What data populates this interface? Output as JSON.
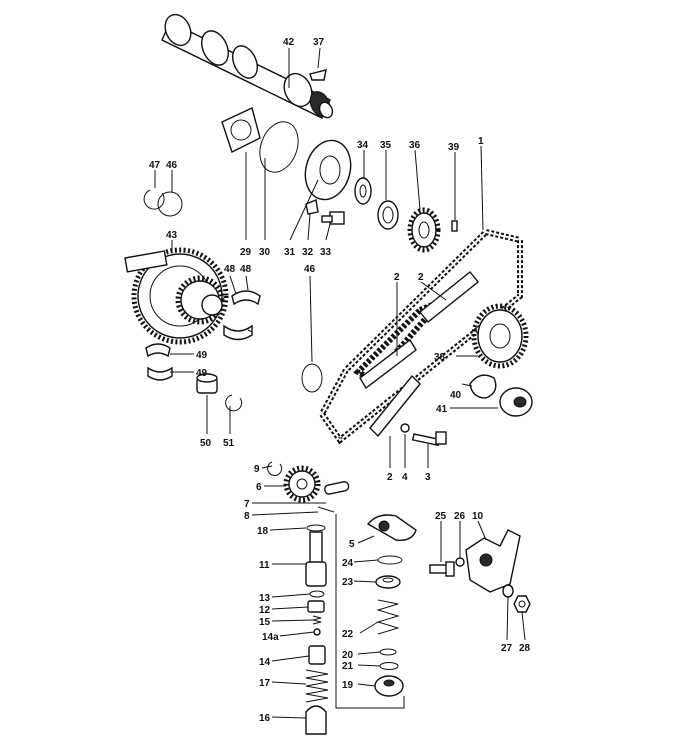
{
  "labels": [
    {
      "id": "l42",
      "text": "42"
    },
    {
      "id": "l37",
      "text": "37"
    },
    {
      "id": "l47",
      "text": "47"
    },
    {
      "id": "l46a",
      "text": "46"
    },
    {
      "id": "l34",
      "text": "34"
    },
    {
      "id": "l35",
      "text": "35"
    },
    {
      "id": "l36",
      "text": "36"
    },
    {
      "id": "l39",
      "text": "39"
    },
    {
      "id": "l1",
      "text": "1"
    },
    {
      "id": "l43",
      "text": "43"
    },
    {
      "id": "l29",
      "text": "29"
    },
    {
      "id": "l30",
      "text": "30"
    },
    {
      "id": "l31",
      "text": "31"
    },
    {
      "id": "l32",
      "text": "32"
    },
    {
      "id": "l33",
      "text": "33"
    },
    {
      "id": "l48a",
      "text": "48"
    },
    {
      "id": "l48b",
      "text": "48"
    },
    {
      "id": "l46b",
      "text": "46"
    },
    {
      "id": "l2a",
      "text": "2"
    },
    {
      "id": "l2b",
      "text": "2"
    },
    {
      "id": "l49a",
      "text": "49"
    },
    {
      "id": "l49b",
      "text": "49"
    },
    {
      "id": "l38",
      "text": "38"
    },
    {
      "id": "l40",
      "text": "40"
    },
    {
      "id": "l41",
      "text": "41"
    },
    {
      "id": "l50",
      "text": "50"
    },
    {
      "id": "l51",
      "text": "51"
    },
    {
      "id": "l2c",
      "text": "2"
    },
    {
      "id": "l4",
      "text": "4"
    },
    {
      "id": "l3",
      "text": "3"
    },
    {
      "id": "l9",
      "text": "9"
    },
    {
      "id": "l6",
      "text": "6"
    },
    {
      "id": "l7",
      "text": "7"
    },
    {
      "id": "l8",
      "text": "8"
    },
    {
      "id": "l18",
      "text": "18"
    },
    {
      "id": "l5",
      "text": "5"
    },
    {
      "id": "l25",
      "text": "25"
    },
    {
      "id": "l26",
      "text": "26"
    },
    {
      "id": "l10",
      "text": "10"
    },
    {
      "id": "l24",
      "text": "24"
    },
    {
      "id": "l11",
      "text": "11"
    },
    {
      "id": "l23",
      "text": "23"
    },
    {
      "id": "l13",
      "text": "13"
    },
    {
      "id": "l12",
      "text": "12"
    },
    {
      "id": "l15",
      "text": "15"
    },
    {
      "id": "l22",
      "text": "22"
    },
    {
      "id": "l14a",
      "text": "14a"
    },
    {
      "id": "l27",
      "text": "27"
    },
    {
      "id": "l28",
      "text": "28"
    },
    {
      "id": "l20",
      "text": "20"
    },
    {
      "id": "l14",
      "text": "14"
    },
    {
      "id": "l21",
      "text": "21"
    },
    {
      "id": "l17",
      "text": "17"
    },
    {
      "id": "l19",
      "text": "19"
    },
    {
      "id": "l16",
      "text": "16"
    }
  ]
}
